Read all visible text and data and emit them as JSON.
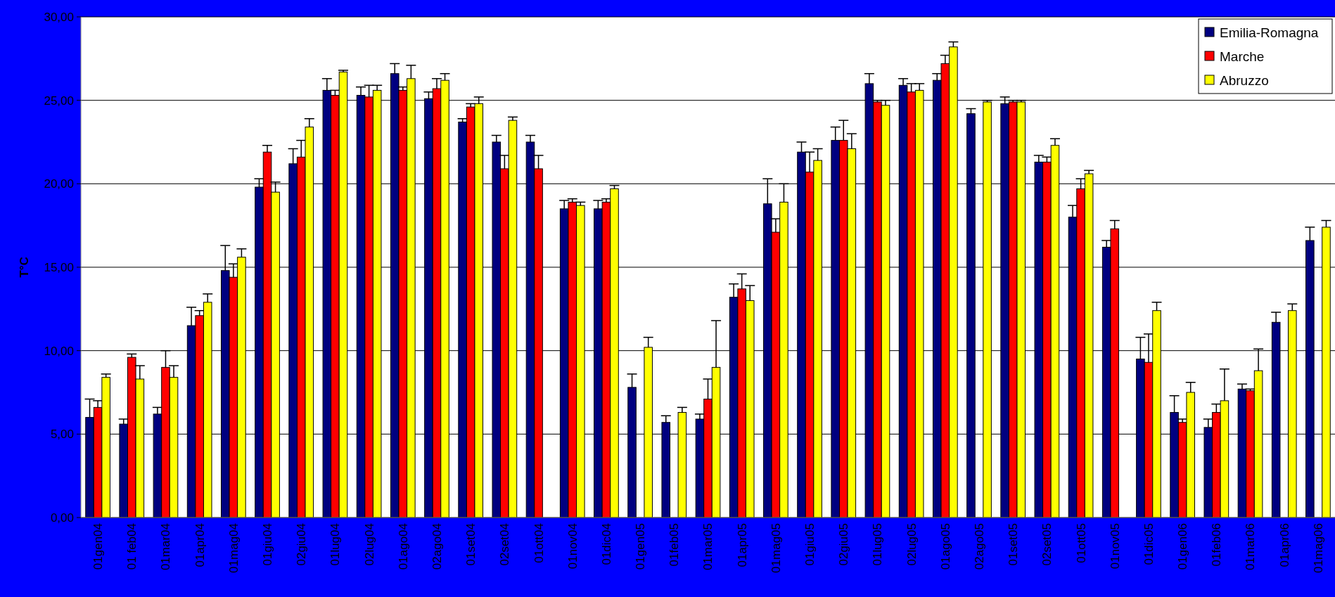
{
  "chart_data": {
    "type": "bar",
    "ylabel": "T°C",
    "categories": [
      "01gen04",
      "01 feb04",
      "01mar04",
      "01apr04",
      "01mag04",
      "01giu04",
      "02giu04",
      "01lug04",
      "02lug04",
      "01ago04",
      "02ago04",
      "01set04",
      "02set04",
      "01ott04",
      "01nov04",
      "01dic04",
      "01gen05",
      "01feb05",
      "01mar05",
      "01apr05",
      "01mag05",
      "01giu05",
      "02giu05",
      "01lug05",
      "02lug05",
      "01ago05",
      "02ago05",
      "01set05",
      "02set05",
      "01ott05",
      "01nov05",
      "01dic05",
      "01gen06",
      "01feb06",
      "01mar06",
      "01apr06",
      "01mag06"
    ],
    "series": [
      {
        "name": "Emilia-Romagna",
        "color": "#000080",
        "values": [
          6.0,
          5.6,
          6.2,
          11.5,
          14.8,
          19.8,
          21.2,
          25.6,
          25.3,
          26.6,
          25.1,
          23.7,
          22.5,
          22.5,
          18.5,
          18.5,
          7.8,
          5.7,
          5.9,
          13.2,
          18.8,
          21.9,
          22.6,
          26.0,
          25.9,
          26.2,
          24.2,
          24.8,
          21.3,
          18.0,
          16.2,
          9.5,
          6.3,
          5.4,
          7.7,
          11.7,
          16.6
        ],
        "errors": [
          [
            6.0,
            7.1
          ],
          [
            5.6,
            5.9
          ],
          [
            6.2,
            6.6
          ],
          [
            11.5,
            12.6
          ],
          [
            14.8,
            16.3
          ],
          [
            19.8,
            20.3
          ],
          [
            21.2,
            22.1
          ],
          [
            25.6,
            26.3
          ],
          [
            25.3,
            25.8
          ],
          [
            26.6,
            27.2
          ],
          [
            25.1,
            25.5
          ],
          [
            23.7,
            23.9
          ],
          [
            22.5,
            22.9
          ],
          [
            22.5,
            22.9
          ],
          [
            18.5,
            19.0
          ],
          [
            18.5,
            19.0
          ],
          [
            7.8,
            8.6
          ],
          [
            5.7,
            6.1
          ],
          [
            5.9,
            6.2
          ],
          [
            13.2,
            14.0
          ],
          [
            18.8,
            20.3
          ],
          [
            21.9,
            22.5
          ],
          [
            22.6,
            23.4
          ],
          [
            26.0,
            26.6
          ],
          [
            25.9,
            26.3
          ],
          [
            26.2,
            26.6
          ],
          [
            24.2,
            24.5
          ],
          [
            24.8,
            25.2
          ],
          [
            21.3,
            21.7
          ],
          [
            18.0,
            18.7
          ],
          [
            16.2,
            16.6
          ],
          [
            9.5,
            10.8
          ],
          [
            6.3,
            7.3
          ],
          [
            5.4,
            5.9
          ],
          [
            7.7,
            8.0
          ],
          [
            11.7,
            12.3
          ],
          [
            16.6,
            17.4
          ]
        ]
      },
      {
        "name": "Marche",
        "color": "#ff0000",
        "values": [
          6.6,
          9.6,
          9.0,
          12.1,
          14.4,
          21.9,
          21.6,
          25.3,
          25.2,
          25.6,
          25.7,
          24.6,
          20.9,
          20.9,
          18.9,
          18.9,
          null,
          null,
          7.1,
          13.7,
          17.1,
          20.7,
          22.6,
          24.9,
          25.5,
          27.2,
          null,
          24.9,
          21.3,
          19.7,
          17.3,
          9.3,
          5.7,
          6.3,
          7.6,
          null,
          null
        ],
        "errors": [
          [
            6.6,
            7.0
          ],
          [
            9.6,
            9.8
          ],
          [
            9.0,
            10.0
          ],
          [
            12.1,
            12.4
          ],
          [
            14.4,
            15.2
          ],
          [
            21.9,
            22.3
          ],
          [
            21.6,
            22.6
          ],
          [
            25.3,
            25.6
          ],
          [
            25.2,
            25.9
          ],
          [
            25.6,
            25.8
          ],
          [
            25.7,
            26.3
          ],
          [
            24.6,
            24.8
          ],
          [
            20.9,
            21.7
          ],
          [
            20.9,
            21.7
          ],
          [
            18.9,
            19.1
          ],
          [
            18.9,
            19.1
          ],
          null,
          null,
          [
            7.1,
            8.3
          ],
          [
            13.7,
            14.6
          ],
          [
            17.1,
            17.9
          ],
          [
            20.7,
            21.9
          ],
          [
            22.6,
            23.8
          ],
          [
            24.9,
            25.0
          ],
          [
            25.5,
            26.0
          ],
          [
            27.2,
            27.7
          ],
          null,
          [
            24.9,
            25.0
          ],
          [
            21.3,
            21.6
          ],
          [
            19.7,
            20.3
          ],
          [
            17.3,
            17.8
          ],
          [
            9.3,
            11.0
          ],
          [
            5.7,
            5.9
          ],
          [
            6.3,
            6.8
          ],
          [
            7.6,
            7.7
          ],
          null,
          null
        ]
      },
      {
        "name": "Abruzzo",
        "color": "#ffff00",
        "values": [
          8.4,
          8.3,
          8.4,
          12.9,
          15.6,
          19.5,
          23.4,
          26.7,
          25.6,
          26.3,
          26.2,
          24.8,
          23.8,
          null,
          18.7,
          19.7,
          10.2,
          6.3,
          9.0,
          13.0,
          18.9,
          21.4,
          22.1,
          24.7,
          25.6,
          28.2,
          24.9,
          24.9,
          22.3,
          20.6,
          null,
          12.4,
          7.5,
          7.0,
          8.8,
          12.4,
          17.4
        ],
        "errors": [
          [
            8.4,
            8.6
          ],
          [
            8.3,
            9.1
          ],
          [
            8.4,
            9.1
          ],
          [
            12.9,
            13.4
          ],
          [
            15.6,
            16.1
          ],
          [
            19.5,
            20.1
          ],
          [
            23.4,
            23.9
          ],
          [
            26.7,
            26.8
          ],
          [
            25.6,
            25.9
          ],
          [
            26.3,
            27.1
          ],
          [
            26.2,
            26.6
          ],
          [
            24.8,
            25.2
          ],
          [
            23.8,
            24.0
          ],
          null,
          [
            18.7,
            18.9
          ],
          [
            19.7,
            19.9
          ],
          [
            10.2,
            10.8
          ],
          [
            6.3,
            6.6
          ],
          [
            9.0,
            11.8
          ],
          [
            13.0,
            13.9
          ],
          [
            18.9,
            20.0
          ],
          [
            21.4,
            22.1
          ],
          [
            22.1,
            23.0
          ],
          [
            24.7,
            25.0
          ],
          [
            25.6,
            26.0
          ],
          [
            28.2,
            28.5
          ],
          [
            24.9,
            25.0
          ],
          [
            24.9,
            25.0
          ],
          [
            22.3,
            22.7
          ],
          [
            20.6,
            20.8
          ],
          null,
          [
            12.4,
            12.9
          ],
          [
            7.5,
            8.1
          ],
          [
            7.0,
            8.9
          ],
          [
            8.8,
            10.1
          ],
          [
            12.4,
            12.8
          ],
          [
            17.4,
            17.8
          ]
        ]
      }
    ],
    "ylim": [
      0,
      30
    ],
    "yticks": [
      {
        "value": 0,
        "label": "0,00"
      },
      {
        "value": 5,
        "label": "5,00"
      },
      {
        "value": 10,
        "label": "10,00"
      },
      {
        "value": 15,
        "label": "15,00"
      },
      {
        "value": 20,
        "label": "20,00"
      },
      {
        "value": 25,
        "label": "25,00"
      },
      {
        "value": 30,
        "label": "30,00"
      }
    ],
    "grid": "y",
    "legend": "top right"
  }
}
